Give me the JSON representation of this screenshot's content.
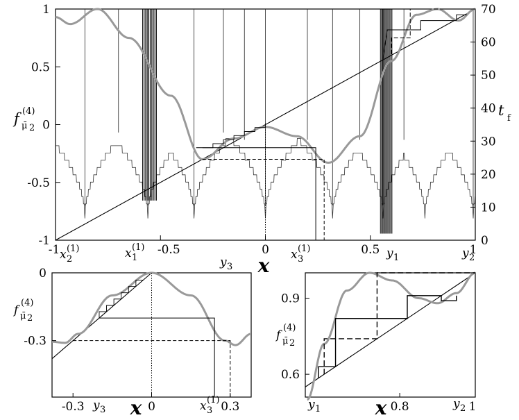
{
  "chart_data": [
    {
      "type": "line",
      "panel": "main",
      "xlabel": "x",
      "xlim": [
        -1,
        1
      ],
      "ylim": [
        -1,
        1
      ],
      "y2lim": [
        0,
        70
      ],
      "x_ticks": [
        "-1",
        "-0.5",
        "0",
        "0.5",
        "1"
      ],
      "y_ticks": [
        "-1",
        "-0.5",
        "0",
        "0.5",
        "1"
      ],
      "y2_ticks": [
        "0",
        "10",
        "20",
        "30",
        "40",
        "50",
        "60",
        "70"
      ],
      "ylabel_main": "f",
      "ylabel_sub": "μ̄",
      "ylabel_sub2": "2",
      "ylabel_sup": "(4)",
      "y2label_main": "t",
      "y2label_sub": "f",
      "point_labels": [
        {
          "main": "x",
          "sub": "2",
          "sup": "(1)",
          "x": -0.97
        },
        {
          "main": "x",
          "sub": "1",
          "sup": "(1)",
          "x": -0.56
        },
        {
          "main": "y",
          "sub": "3",
          "x": -0.34
        },
        {
          "main": "x",
          "sub": "3",
          "sup": "(1)",
          "x": 0.32
        },
        {
          "main": "y",
          "sub": "1",
          "x": 0.56
        },
        {
          "main": "y",
          "sub": "2",
          "x": 0.99
        }
      ],
      "series": [
        {
          "role": "map",
          "color": "#999999",
          "x_range": [
            -1,
            1
          ]
        },
        {
          "role": "diagonal",
          "color": "#000000",
          "x": [
            -1,
            1
          ],
          "y": [
            -1,
            1
          ]
        },
        {
          "role": "escape-time",
          "color": "#444444",
          "axis": "right"
        }
      ]
    },
    {
      "type": "line",
      "panel": "bottom-left",
      "xlabel": "x",
      "xlim": [
        -0.38,
        0.38
      ],
      "ylim": [
        -0.55,
        0
      ],
      "x_ticks": [
        "-0.3",
        "0",
        "0.3"
      ],
      "y_ticks": [
        "-0.3",
        "0"
      ],
      "ylabel_main": "f",
      "ylabel_sub": "μ̄",
      "ylabel_sub2": "2",
      "ylabel_sup": "(4)",
      "point_labels": [
        {
          "main": "y",
          "sub": "3",
          "x": -0.34
        },
        {
          "main": "x",
          "sub": "3",
          "sup": "(1)",
          "x": 0.24
        }
      ],
      "series": [
        {
          "role": "map",
          "color": "#999999"
        },
        {
          "role": "diagonal",
          "color": "#000000"
        }
      ]
    },
    {
      "type": "line",
      "panel": "bottom-right",
      "xlabel": "x",
      "xlim": [
        0.55,
        1
      ],
      "ylim": [
        0.51,
        1
      ],
      "x_ticks": [
        "0.8",
        "1"
      ],
      "y_ticks": [
        "0.6",
        "0.9"
      ],
      "ylabel_main": "f",
      "ylabel_sub": "μ̄",
      "ylabel_sub2": "2",
      "ylabel_sup": "(4)",
      "point_labels": [
        {
          "main": "y",
          "sub": "1",
          "x": 0.576
        },
        {
          "main": "y",
          "sub": "2",
          "x": 0.973
        }
      ],
      "series": [
        {
          "role": "map",
          "color": "#999999"
        },
        {
          "role": "diagonal",
          "color": "#000000"
        }
      ]
    }
  ]
}
